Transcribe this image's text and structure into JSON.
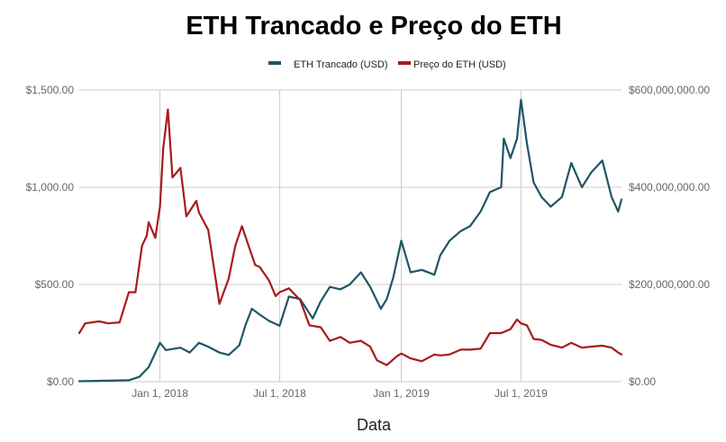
{
  "chart_data": {
    "type": "line",
    "title": "ETH Trancado e Preço do ETH",
    "xlabel": "Data",
    "ylabel": "",
    "ylabel_right": "",
    "x_ticks": [
      "Jan 1, 2018",
      "Jul 1, 2018",
      "Jan 1, 2019",
      "Jul 1, 2019"
    ],
    "x_range": [
      "2017-09-01",
      "2019-11-30"
    ],
    "y_left_ticks": [
      "$0.00",
      "$500.00",
      "$1,000.00",
      "$1,500.00"
    ],
    "y_left_range": [
      0,
      1500
    ],
    "y_right_ticks": [
      "$0.00",
      "$200,000,000.00",
      "$400,000,000.00",
      "$600,000,000.00"
    ],
    "y_right_range": [
      0,
      600000000
    ],
    "grid": true,
    "legend_position": "top",
    "series": [
      {
        "name": "ETH Trancado (USD)",
        "axis": "right",
        "color": "#1f5566",
        "points": [
          [
            "2017-09-01",
            1000000
          ],
          [
            "2017-10-15",
            2000000
          ],
          [
            "2017-11-15",
            3000000
          ],
          [
            "2017-12-01",
            10000000
          ],
          [
            "2017-12-15",
            30000000
          ],
          [
            "2018-01-01",
            80000000
          ],
          [
            "2018-01-10",
            65000000
          ],
          [
            "2018-02-01",
            70000000
          ],
          [
            "2018-02-15",
            60000000
          ],
          [
            "2018-03-01",
            80000000
          ],
          [
            "2018-03-15",
            72000000
          ],
          [
            "2018-04-01",
            60000000
          ],
          [
            "2018-04-15",
            55000000
          ],
          [
            "2018-05-01",
            75000000
          ],
          [
            "2018-05-10",
            115000000
          ],
          [
            "2018-05-20",
            150000000
          ],
          [
            "2018-06-01",
            138000000
          ],
          [
            "2018-06-15",
            125000000
          ],
          [
            "2018-07-01",
            115000000
          ],
          [
            "2018-07-15",
            175000000
          ],
          [
            "2018-08-01",
            170000000
          ],
          [
            "2018-08-20",
            130000000
          ],
          [
            "2018-09-01",
            165000000
          ],
          [
            "2018-09-15",
            195000000
          ],
          [
            "2018-10-01",
            190000000
          ],
          [
            "2018-10-15",
            200000000
          ],
          [
            "2018-11-01",
            225000000
          ],
          [
            "2018-11-15",
            195000000
          ],
          [
            "2018-12-01",
            150000000
          ],
          [
            "2018-12-10",
            170000000
          ],
          [
            "2018-12-20",
            215000000
          ],
          [
            "2019-01-01",
            290000000
          ],
          [
            "2019-01-15",
            225000000
          ],
          [
            "2019-02-01",
            230000000
          ],
          [
            "2019-02-20",
            220000000
          ],
          [
            "2019-03-01",
            260000000
          ],
          [
            "2019-03-15",
            290000000
          ],
          [
            "2019-04-01",
            310000000
          ],
          [
            "2019-04-15",
            320000000
          ],
          [
            "2019-05-01",
            350000000
          ],
          [
            "2019-05-15",
            390000000
          ],
          [
            "2019-06-01",
            400000000
          ],
          [
            "2019-06-05",
            500000000
          ],
          [
            "2019-06-15",
            460000000
          ],
          [
            "2019-06-25",
            500000000
          ],
          [
            "2019-07-01",
            580000000
          ],
          [
            "2019-07-10",
            490000000
          ],
          [
            "2019-07-20",
            410000000
          ],
          [
            "2019-08-01",
            380000000
          ],
          [
            "2019-08-15",
            360000000
          ],
          [
            "2019-09-01",
            380000000
          ],
          [
            "2019-09-15",
            450000000
          ],
          [
            "2019-10-01",
            400000000
          ],
          [
            "2019-10-15",
            430000000
          ],
          [
            "2019-11-01",
            455000000
          ],
          [
            "2019-11-15",
            380000000
          ],
          [
            "2019-11-25",
            350000000
          ],
          [
            "2019-11-30",
            375000000
          ]
        ]
      },
      {
        "name": "Preço do ETH (USD)",
        "axis": "left",
        "color": "#a81a1a",
        "points": [
          [
            "2017-09-01",
            250
          ],
          [
            "2017-09-10",
            300
          ],
          [
            "2017-10-01",
            310
          ],
          [
            "2017-10-15",
            300
          ],
          [
            "2017-11-01",
            305
          ],
          [
            "2017-11-15",
            460
          ],
          [
            "2017-11-25",
            460
          ],
          [
            "2017-12-05",
            700
          ],
          [
            "2017-12-12",
            750
          ],
          [
            "2017-12-15",
            820
          ],
          [
            "2017-12-25",
            740
          ],
          [
            "2018-01-01",
            900
          ],
          [
            "2018-01-06",
            1200
          ],
          [
            "2018-01-13",
            1400
          ],
          [
            "2018-01-20",
            1050
          ],
          [
            "2018-02-01",
            1100
          ],
          [
            "2018-02-10",
            850
          ],
          [
            "2018-02-25",
            930
          ],
          [
            "2018-03-01",
            870
          ],
          [
            "2018-03-15",
            780
          ],
          [
            "2018-04-01",
            400
          ],
          [
            "2018-04-15",
            530
          ],
          [
            "2018-04-25",
            700
          ],
          [
            "2018-05-05",
            800
          ],
          [
            "2018-05-15",
            700
          ],
          [
            "2018-05-25",
            600
          ],
          [
            "2018-06-01",
            590
          ],
          [
            "2018-06-15",
            520
          ],
          [
            "2018-06-25",
            440
          ],
          [
            "2018-07-01",
            460
          ],
          [
            "2018-07-15",
            480
          ],
          [
            "2018-08-01",
            420
          ],
          [
            "2018-08-15",
            290
          ],
          [
            "2018-09-01",
            280
          ],
          [
            "2018-09-15",
            210
          ],
          [
            "2018-10-01",
            230
          ],
          [
            "2018-10-15",
            200
          ],
          [
            "2018-11-01",
            210
          ],
          [
            "2018-11-15",
            180
          ],
          [
            "2018-11-25",
            110
          ],
          [
            "2018-12-10",
            85
          ],
          [
            "2018-12-25",
            130
          ],
          [
            "2019-01-01",
            145
          ],
          [
            "2019-01-15",
            120
          ],
          [
            "2019-02-01",
            105
          ],
          [
            "2019-02-20",
            140
          ],
          [
            "2019-03-01",
            135
          ],
          [
            "2019-03-15",
            140
          ],
          [
            "2019-04-01",
            165
          ],
          [
            "2019-04-15",
            165
          ],
          [
            "2019-05-01",
            170
          ],
          [
            "2019-05-15",
            250
          ],
          [
            "2019-06-01",
            250
          ],
          [
            "2019-06-15",
            270
          ],
          [
            "2019-06-25",
            320
          ],
          [
            "2019-07-01",
            300
          ],
          [
            "2019-07-10",
            290
          ],
          [
            "2019-07-20",
            220
          ],
          [
            "2019-08-01",
            215
          ],
          [
            "2019-08-15",
            190
          ],
          [
            "2019-09-01",
            175
          ],
          [
            "2019-09-15",
            200
          ],
          [
            "2019-10-01",
            175
          ],
          [
            "2019-10-15",
            180
          ],
          [
            "2019-11-01",
            185
          ],
          [
            "2019-11-15",
            175
          ],
          [
            "2019-11-25",
            150
          ],
          [
            "2019-11-30",
            140
          ]
        ]
      }
    ]
  }
}
